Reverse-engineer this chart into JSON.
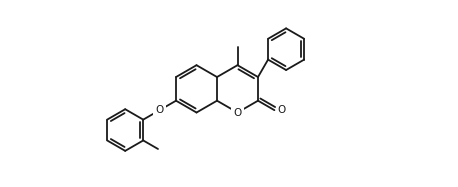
{
  "bg_color": "#ffffff",
  "line_color": "#1a1a1a",
  "lw": 1.3,
  "dbo": 0.033,
  "figsize": [
    4.58,
    1.87
  ],
  "dpi": 100,
  "r": 0.255,
  "xlim": [
    -1.75,
    2.35
  ],
  "ylim": [
    -1.0,
    1.0
  ]
}
